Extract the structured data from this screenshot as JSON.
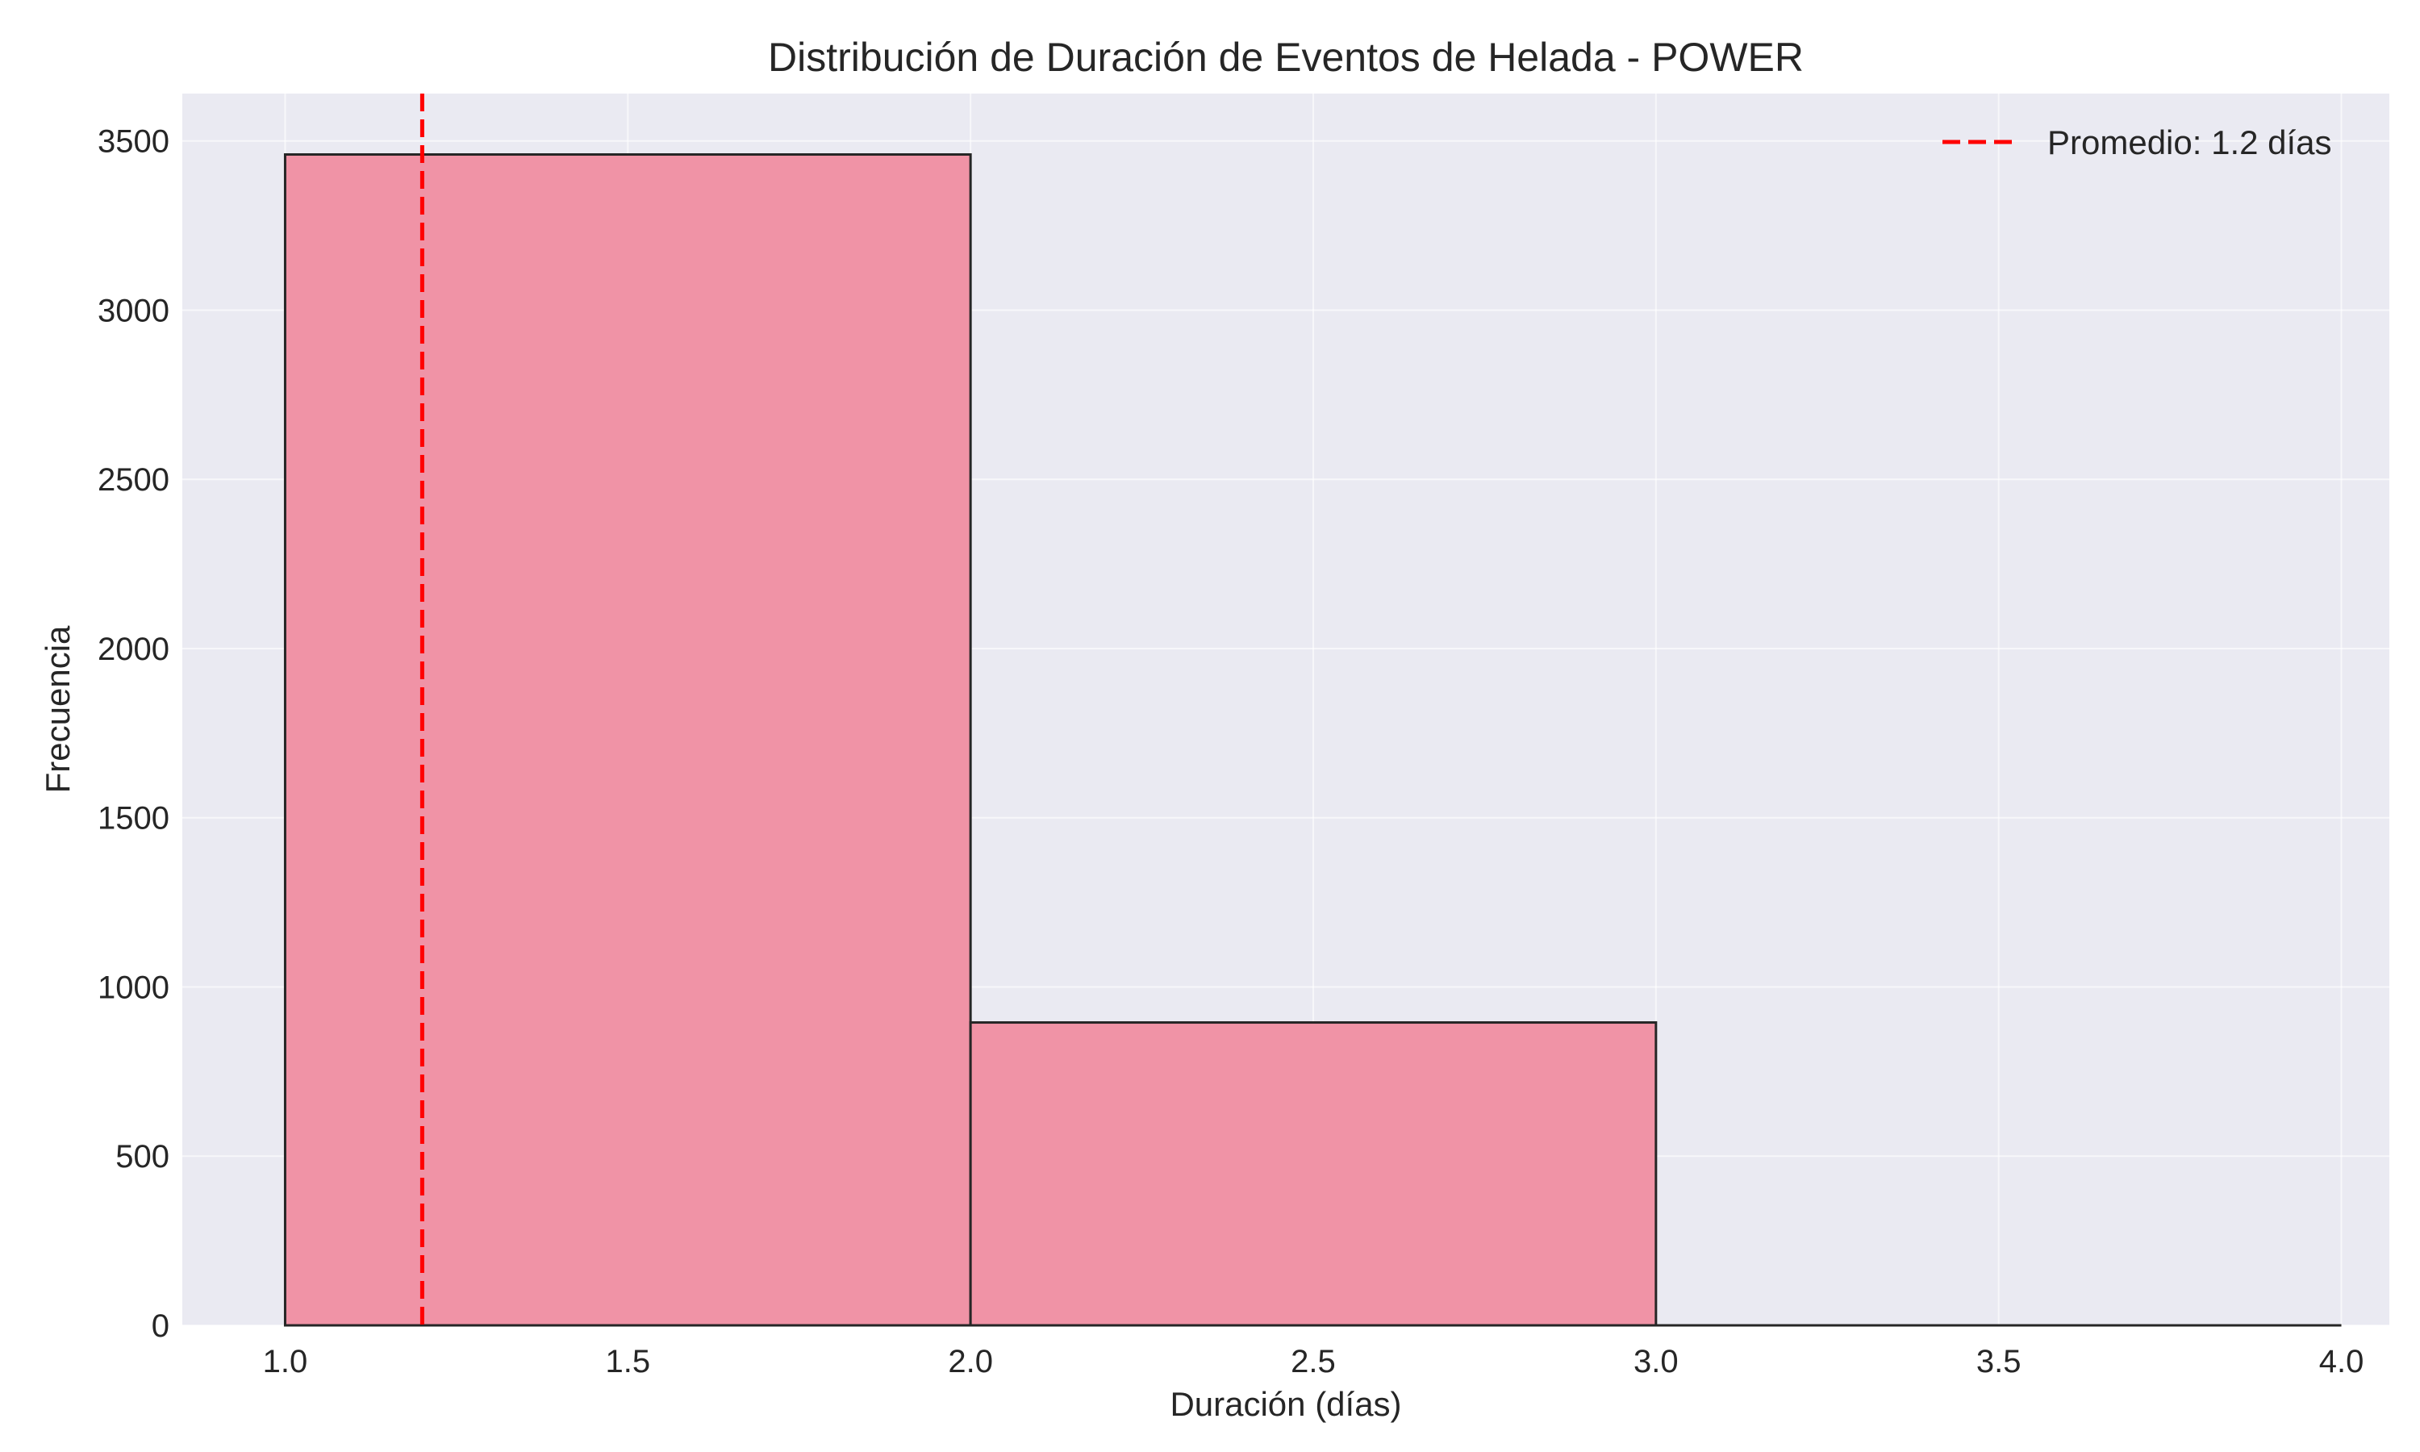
{
  "chart_data": {
    "type": "bar",
    "title": "Distribución de Duración de Eventos de Helada - POWER",
    "xlabel": "Duración (días)",
    "ylabel": "Frecuencia",
    "bins": [
      {
        "x_start": 1.0,
        "x_end": 2.0,
        "value": 3460
      },
      {
        "x_start": 2.0,
        "x_end": 3.0,
        "value": 895
      },
      {
        "x_start": 3.0,
        "x_end": 4.0,
        "value": 0
      }
    ],
    "xlim": [
      0.85,
      4.07
    ],
    "ylim": [
      0,
      3640
    ],
    "xticks": [
      1.0,
      1.5,
      2.0,
      2.5,
      3.0,
      3.5,
      4.0
    ],
    "xtick_labels": [
      "1.0",
      "1.5",
      "2.0",
      "2.5",
      "3.0",
      "3.5",
      "4.0"
    ],
    "yticks": [
      0,
      500,
      1000,
      1500,
      2000,
      2500,
      3000,
      3500
    ],
    "ytick_labels": [
      "0",
      "500",
      "1000",
      "1500",
      "2000",
      "2500",
      "3000",
      "3500"
    ],
    "mean_line": {
      "x": 1.2,
      "label": "Promedio: 1.2 días",
      "color": "#ff0000"
    },
    "bar_color": "#f093a6",
    "bar_edge_color": "#262626",
    "background_color": "#eaeaf2",
    "grid": true,
    "legend_position": "top-right"
  }
}
